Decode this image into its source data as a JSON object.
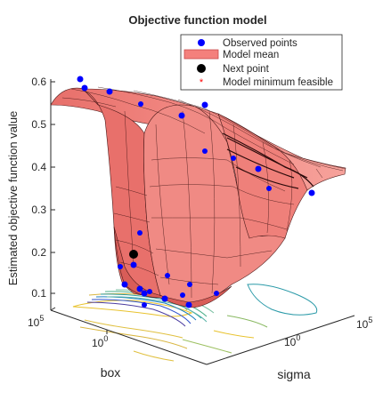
{
  "chart_data": {
    "type": "surface3d",
    "title": "Objective function model",
    "xlabel": "box",
    "ylabel": "sigma",
    "zlabel": "Estimated objective function value",
    "z_ticks": [
      0.1,
      0.2,
      0.3,
      0.4,
      0.5,
      0.6
    ],
    "box_ticks": [
      "10^5",
      "10^0"
    ],
    "sigma_ticks": [
      "10^0",
      "10^5"
    ],
    "zlim": [
      0.07,
      0.62
    ],
    "grid": false,
    "legend_position": "top-right",
    "legend": [
      {
        "label": "Observed points",
        "marker": "dot-blue"
      },
      {
        "label": "Model mean",
        "marker": "patch-salmon"
      },
      {
        "label": "Next point",
        "marker": "dot-black"
      },
      {
        "label": "Model minimum feasible",
        "marker": "asterisk-red"
      }
    ],
    "colors": {
      "surface": "#f4807c",
      "surface_dark": "#c94a4a",
      "mesh": "#3a1010",
      "observed": "#0000ff",
      "next": "#000000",
      "minimum": "#ff0000",
      "axis": "#262626"
    },
    "observed_points_z": [
      0.61,
      0.59,
      0.57,
      0.55,
      0.52,
      0.54,
      0.39,
      0.37,
      0.35,
      0.34,
      0.33,
      0.24,
      0.16,
      0.12,
      0.11,
      0.1,
      0.1,
      0.09,
      0.09,
      0.1,
      0.1,
      0.11,
      0.15,
      0.2,
      0.13
    ],
    "next_point_z": 0.19
  }
}
